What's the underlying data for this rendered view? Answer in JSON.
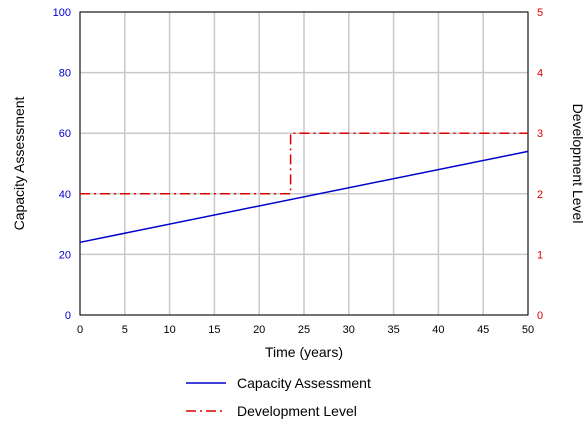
{
  "chart_data": {
    "type": "line",
    "title": "",
    "xlabel": "Time (years)",
    "ylabel_left": "Capacity Assessment",
    "ylabel_right": "Development Level",
    "xlim": [
      0,
      50
    ],
    "ylim_left": [
      0,
      100
    ],
    "ylim_right": [
      0,
      5
    ],
    "x_ticks": [
      "0",
      "5",
      "10",
      "15",
      "20",
      "25",
      "30",
      "35",
      "40",
      "45",
      "50"
    ],
    "y_left_ticks": [
      "0",
      "20",
      "40",
      "60",
      "80",
      "100"
    ],
    "y_right_ticks": [
      "0",
      "1",
      "2",
      "3",
      "4",
      "5"
    ],
    "grid": true,
    "legend_position": "bottom",
    "series": [
      {
        "name": "Capacity Assessment",
        "axis": "left",
        "color": "#0000cc",
        "style": "solid",
        "x": [
          0,
          50
        ],
        "y": [
          24,
          54
        ]
      },
      {
        "name": "Development Level",
        "axis": "right",
        "color": "#dd0000",
        "style": "dash-dot",
        "x": [
          0,
          23.5,
          23.5,
          50
        ],
        "y": [
          2,
          2,
          3,
          3
        ]
      }
    ],
    "left_axis_color": "#0000cc",
    "right_axis_color": "#dd0000"
  }
}
